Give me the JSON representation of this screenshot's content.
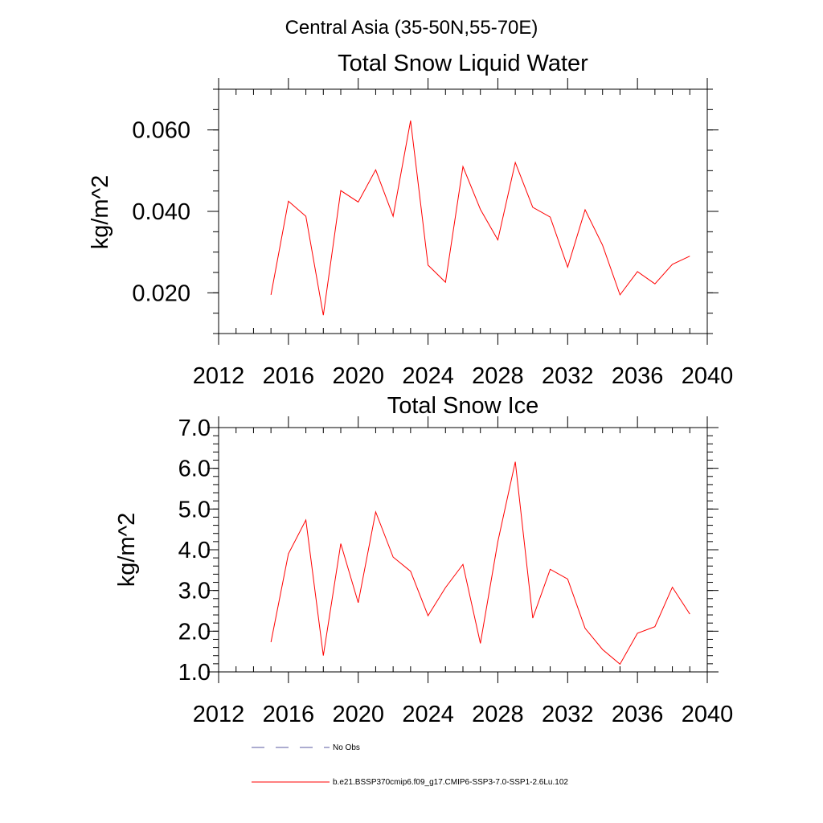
{
  "suptitle": "Central Asia (35-50N,55-70E)",
  "colors": {
    "series": "#ff0000",
    "no_obs": "#5a5aa0",
    "axis": "#000000"
  },
  "legend": {
    "entries": [
      {
        "label": "No Obs",
        "style": "dashed",
        "color": "#5a5aa0"
      },
      {
        "label": "b.e21.BSSP370cmip6.f09_g17.CMIP6-SSP3-7.0-SSP1-2.6Lu.102",
        "style": "solid",
        "color": "#ff0000"
      }
    ]
  },
  "chart_data": [
    {
      "type": "line",
      "title": "Total Snow Liquid Water",
      "xlabel": "",
      "ylabel": "kg/m^2",
      "xlim": [
        2012,
        2040
      ],
      "ylim": [
        0.01,
        0.07
      ],
      "xticks": [
        2012,
        2016,
        2020,
        2024,
        2028,
        2032,
        2036,
        2040
      ],
      "xtick_labels": [
        "2012",
        "2016",
        "2020",
        "2024",
        "2028",
        "2032",
        "2036",
        "2040"
      ],
      "yticks": [
        0.02,
        0.04,
        0.06
      ],
      "ytick_labels": [
        "0.020",
        "0.040",
        "0.060"
      ],
      "grid": false,
      "x": [
        2015,
        2016,
        2017,
        2018,
        2019,
        2020,
        2021,
        2022,
        2023,
        2024,
        2025,
        2026,
        2027,
        2028,
        2029,
        2030,
        2031,
        2032,
        2033,
        2034,
        2035,
        2036,
        2037,
        2038,
        2039
      ],
      "series": [
        {
          "values": [
            0.0195,
            0.0425,
            0.0388,
            0.0145,
            0.0451,
            0.0423,
            0.0502,
            0.0388,
            0.0623,
            0.0268,
            0.0226,
            0.051,
            0.0405,
            0.033,
            0.052,
            0.041,
            0.0386,
            0.0263,
            0.0404,
            0.0317,
            0.0195,
            0.0252,
            0.0222,
            0.027,
            0.029
          ]
        }
      ]
    },
    {
      "type": "line",
      "title": "Total Snow Ice",
      "xlabel": "",
      "ylabel": "kg/m^2",
      "xlim": [
        2012,
        2040
      ],
      "ylim": [
        1.0,
        7.0
      ],
      "xticks": [
        2012,
        2016,
        2020,
        2024,
        2028,
        2032,
        2036,
        2040
      ],
      "xtick_labels": [
        "2012",
        "2016",
        "2020",
        "2024",
        "2028",
        "2032",
        "2036",
        "2040"
      ],
      "yticks": [
        1.0,
        2.0,
        3.0,
        4.0,
        5.0,
        6.0,
        7.0
      ],
      "ytick_labels": [
        "1.0",
        "2.0",
        "3.0",
        "4.0",
        "5.0",
        "6.0",
        "7.0"
      ],
      "grid": false,
      "x": [
        2015,
        2016,
        2017,
        2018,
        2019,
        2020,
        2021,
        2022,
        2023,
        2024,
        2025,
        2026,
        2027,
        2028,
        2029,
        2030,
        2031,
        2032,
        2033,
        2034,
        2035,
        2036,
        2037,
        2038,
        2039
      ],
      "series": [
        {
          "values": [
            1.73,
            3.9,
            4.73,
            1.4,
            4.15,
            2.7,
            4.93,
            3.82,
            3.47,
            2.38,
            3.07,
            3.64,
            1.7,
            4.2,
            6.16,
            2.32,
            3.52,
            3.28,
            2.07,
            1.55,
            1.19,
            1.95,
            2.11,
            3.08,
            2.42
          ]
        }
      ]
    }
  ]
}
